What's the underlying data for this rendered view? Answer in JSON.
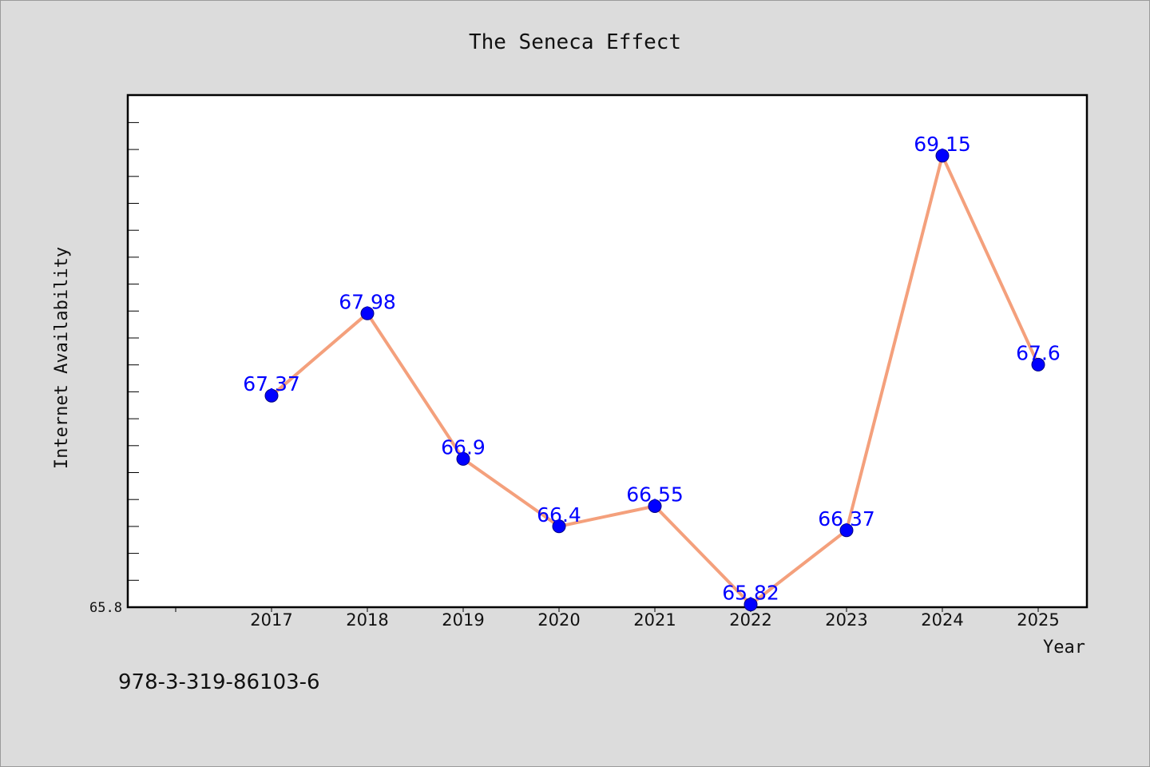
{
  "chart_data": {
    "type": "line",
    "title": "The Seneca Effect",
    "xlabel": "Year",
    "ylabel": "Internet Availability",
    "categories": [
      "2017",
      "2018",
      "2019",
      "2020",
      "2021",
      "2022",
      "2023",
      "2024",
      "2025"
    ],
    "series": [
      {
        "values": [
          67.37,
          67.98,
          66.9,
          66.4,
          66.55,
          65.82,
          66.37,
          69.15,
          67.6
        ],
        "data_labels": [
          "67.37",
          "67.98",
          "66.9",
          "66.4",
          "66.55",
          "65.82",
          "66.37",
          "69.15",
          "67.6"
        ]
      }
    ],
    "y_min_label": "65.8",
    "ylim": [
      65.8,
      69.6
    ],
    "grid": false,
    "legend": "none",
    "colors": {
      "line": "#f4a07c",
      "marker": "#0000ff",
      "data_label": "#0000ff",
      "plot_background": "#ffffff",
      "page_background": "#dcdcdc"
    }
  },
  "footer": {
    "isbn": "978-3-319-86103-6"
  }
}
